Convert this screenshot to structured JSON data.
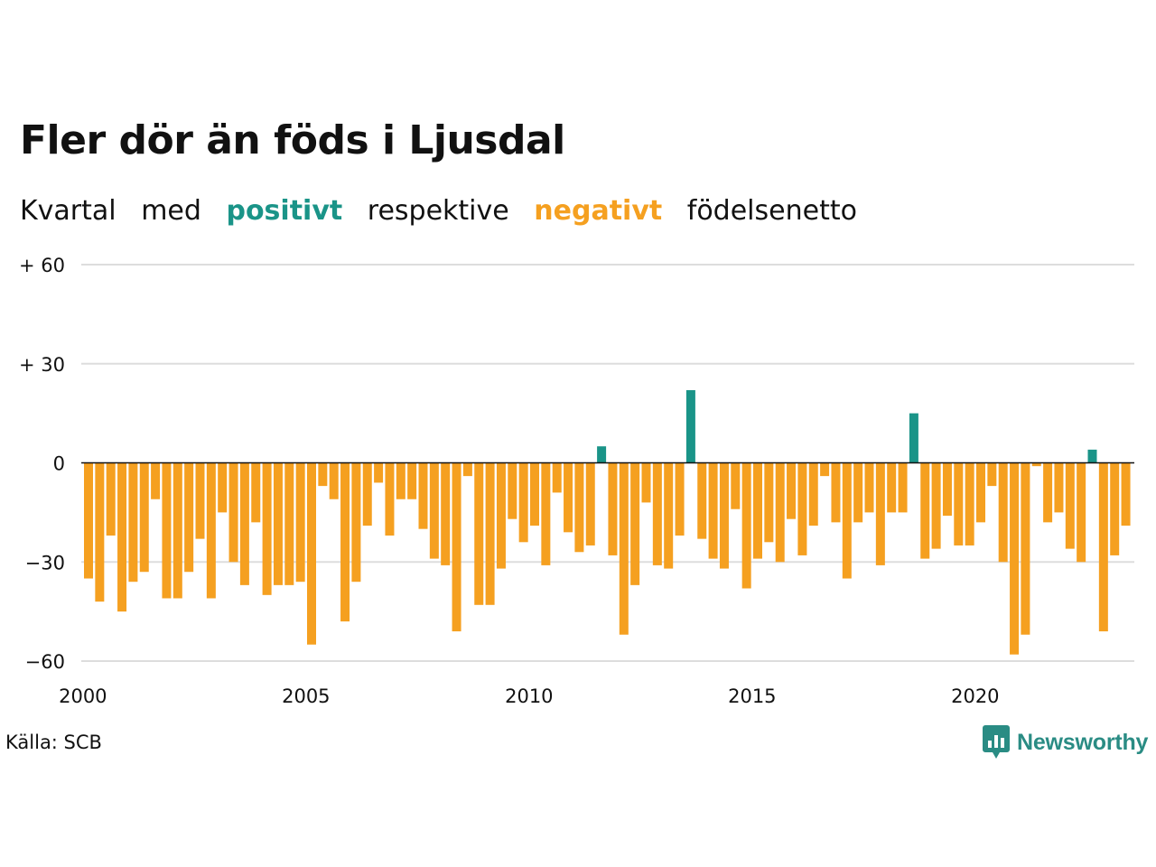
{
  "title": "Fler dör än föds i Ljusdal",
  "subtitle": {
    "part1": "Kvartal",
    "part2": "med",
    "positive_word": "positivt",
    "part3": "respektive",
    "negative_word": "negativt",
    "part4": "födelsenetto"
  },
  "source": "Källa: SCB",
  "brand": {
    "name": "Newsworthy",
    "icon": "newsworthy-logo-icon"
  },
  "colors": {
    "positive": "#1a9488",
    "negative": "#f5a020",
    "grid": "#dddddd",
    "zero_line": "#111111"
  },
  "chart_data": {
    "type": "bar",
    "title": "Fler dör än föds i Ljusdal",
    "xlabel": "",
    "ylabel": "",
    "ylim": [
      -60,
      60
    ],
    "y_ticks": [
      {
        "value": 60,
        "label": "+ 60"
      },
      {
        "value": 30,
        "label": "+ 30"
      },
      {
        "value": 0,
        "label": "0"
      },
      {
        "value": -30,
        "label": "−30"
      },
      {
        "value": -60,
        "label": "−60"
      }
    ],
    "x_start": "2000 Q1",
    "x_ticks": [
      {
        "value": 2000,
        "label": "2000"
      },
      {
        "value": 2005,
        "label": "2005"
      },
      {
        "value": 2010,
        "label": "2010"
      },
      {
        "value": 2015,
        "label": "2015"
      },
      {
        "value": 2020,
        "label": "2020"
      }
    ],
    "grid": true,
    "values": [
      -35,
      -42,
      -22,
      -45,
      -36,
      -33,
      -11,
      -41,
      -41,
      -33,
      -23,
      -41,
      -15,
      -30,
      -37,
      -18,
      -40,
      -37,
      -37,
      -36,
      -55,
      -7,
      -11,
      -48,
      -36,
      -19,
      -6,
      -22,
      -11,
      -11,
      -20,
      -29,
      -31,
      -51,
      -4,
      -43,
      -43,
      -32,
      -17,
      -24,
      -19,
      -31,
      -9,
      -21,
      -27,
      -25,
      5,
      -28,
      -52,
      -37,
      -12,
      -31,
      -32,
      -22,
      22,
      -23,
      -29,
      -32,
      -14,
      -38,
      -29,
      -24,
      -30,
      -17,
      -28,
      -19,
      -4,
      -18,
      -35,
      -18,
      -15,
      -31,
      -15,
      -15,
      15,
      -29,
      -26,
      -16,
      -25,
      -25,
      -18,
      -7,
      -30,
      -58,
      -52,
      -1,
      -18,
      -15,
      -26,
      -30,
      4,
      -51,
      -28,
      -19
    ]
  }
}
